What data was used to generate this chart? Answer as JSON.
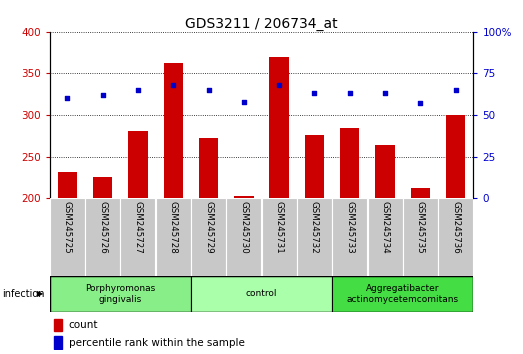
{
  "title": "GDS3211 / 206734_at",
  "samples": [
    "GSM245725",
    "GSM245726",
    "GSM245727",
    "GSM245728",
    "GSM245729",
    "GSM245730",
    "GSM245731",
    "GSM245732",
    "GSM245733",
    "GSM245734",
    "GSM245735",
    "GSM245736"
  ],
  "count_values": [
    232,
    226,
    281,
    362,
    272,
    203,
    370,
    276,
    285,
    264,
    212,
    300
  ],
  "percentile_values": [
    60,
    62,
    65,
    68,
    65,
    58,
    68,
    63,
    63,
    63,
    57,
    65
  ],
  "ylim_left": [
    200,
    400
  ],
  "ylim_right": [
    0,
    100
  ],
  "yticks_left": [
    200,
    250,
    300,
    350,
    400
  ],
  "yticks_right": [
    0,
    25,
    50,
    75,
    100
  ],
  "bar_color": "#cc0000",
  "dot_color": "#0000cc",
  "bar_bottom": 200,
  "groups": [
    {
      "label": "Porphyromonas\ngingivalis",
      "start": 0,
      "end": 3,
      "color": "#88ee88"
    },
    {
      "label": "control",
      "start": 4,
      "end": 7,
      "color": "#aaffaa"
    },
    {
      "label": "Aggregatibacter\nactinomycetemcomitans",
      "start": 8,
      "end": 11,
      "color": "#44dd44"
    }
  ],
  "group_row_label": "infection",
  "legend_items": [
    {
      "label": "count",
      "color": "#cc0000"
    },
    {
      "label": "percentile rank within the sample",
      "color": "#0000cc"
    }
  ],
  "left_axis_color": "#cc0000",
  "right_axis_color": "#0000cc",
  "tick_label_bg": "#cccccc"
}
